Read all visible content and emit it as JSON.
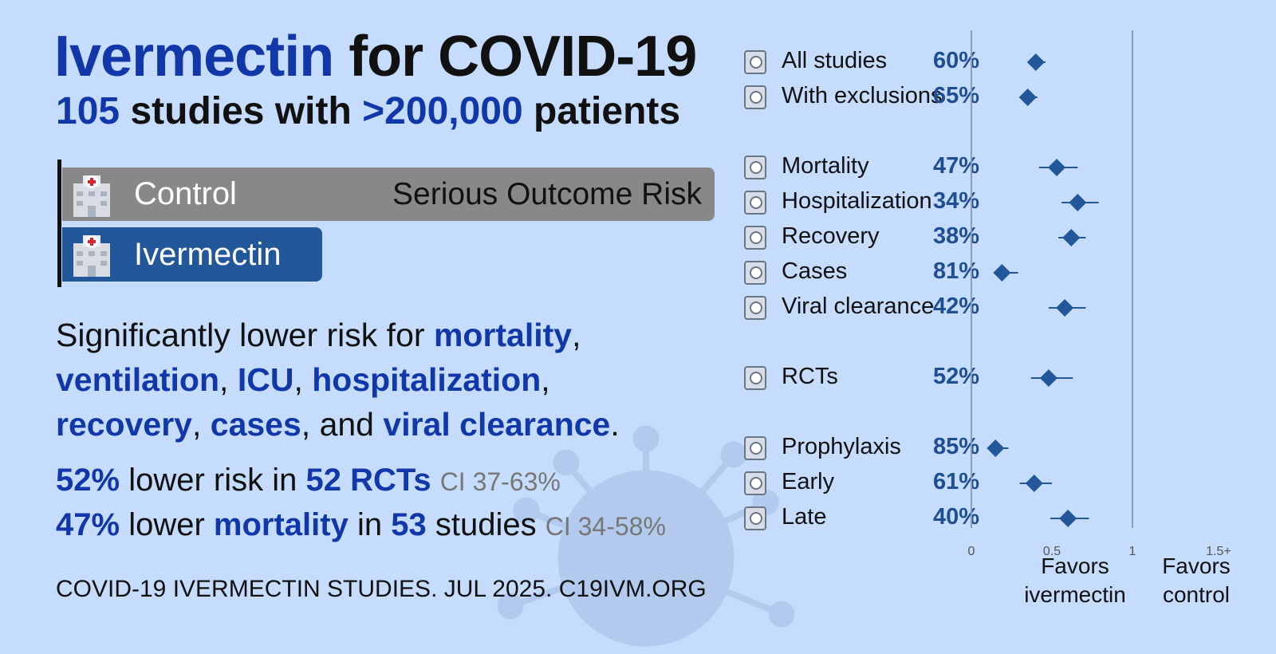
{
  "title": {
    "drug": "Ivermectin",
    "rest": "for COVID-19"
  },
  "subtitle": {
    "study_count": "105",
    "studies_text": "studies with",
    "patient_count": ">200,000",
    "patients_text": "patients"
  },
  "bars": {
    "control_label": "Control",
    "ivermectin_label": "Ivermectin",
    "risk_label": "Serious Outcome Risk",
    "control_risk": 1.0,
    "ivermectin_risk": 0.4
  },
  "summary": {
    "lead": "Significantly lower risk for",
    "terms": [
      "mortality",
      "ventilation",
      "ICU",
      "hospitalization",
      "recovery",
      "cases",
      "viral clearance"
    ],
    "conjunction": "and"
  },
  "stats": [
    {
      "pct": "52%",
      "mid": "lower risk in",
      "count": "52 RCTs",
      "ci": "CI 37-63%"
    },
    {
      "pct": "47%",
      "mid": "lower",
      "keyword": "mortality",
      "in_text": "in",
      "count": "53",
      "tail": "studies",
      "ci": "CI 34-58%"
    }
  ],
  "footer": "COVID-19 IVERMECTIN STUDIES. JUL 2025. C19IVM.ORG",
  "chart_data": {
    "type": "scatter",
    "subtype": "forest-plot",
    "x_axis": {
      "ticks": [
        "0",
        "0.5",
        "1",
        "1.5+"
      ],
      "range": [
        0,
        1.5
      ]
    },
    "reference_line": 1,
    "favors_left": "Favors ivermectin",
    "favors_right": "Favors control",
    "rows": [
      {
        "icon": "document-search-icon",
        "label": "All studies",
        "pct": "60%",
        "rr": 0.4,
        "ci": [
          0.36,
          0.46
        ],
        "slot": 0
      },
      {
        "icon": "document-search-icon",
        "label": "With exclusions",
        "pct": "65%",
        "rr": 0.35,
        "ci": [
          0.32,
          0.41
        ],
        "slot": 1
      },
      {
        "icon": "tombstone-icon",
        "label": "Mortality",
        "pct": "47%",
        "rr": 0.53,
        "ci": [
          0.42,
          0.66
        ],
        "slot": 3
      },
      {
        "icon": "hospital-icon",
        "label": "Hospitalization",
        "pct": "34%",
        "rr": 0.66,
        "ci": [
          0.56,
          0.79
        ],
        "slot": 4
      },
      {
        "icon": "recovery-icon",
        "label": "Recovery",
        "pct": "38%",
        "rr": 0.62,
        "ci": [
          0.54,
          0.71
        ],
        "slot": 5
      },
      {
        "icon": "masked-person-icon",
        "label": "Cases",
        "pct": "81%",
        "rr": 0.19,
        "ci": [
          0.14,
          0.29
        ],
        "slot": 6
      },
      {
        "icon": "virus-icon",
        "label": "Viral clearance",
        "pct": "42%",
        "rr": 0.58,
        "ci": [
          0.48,
          0.71
        ],
        "slot": 7
      },
      {
        "icon": "rct-icon",
        "label": "RCTs",
        "pct": "52%",
        "rr": 0.48,
        "ci": [
          0.37,
          0.63
        ],
        "slot": 9
      },
      {
        "icon": "shield-icon",
        "label": "Prophylaxis",
        "pct": "85%",
        "rr": 0.15,
        "ci": [
          0.1,
          0.23
        ],
        "slot": 11
      },
      {
        "icon": "clock-icon",
        "label": "Early",
        "pct": "61%",
        "rr": 0.39,
        "ci": [
          0.3,
          0.5
        ],
        "slot": 12
      },
      {
        "icon": "hospital-bed-icon",
        "label": "Late",
        "pct": "40%",
        "rr": 0.6,
        "ci": [
          0.49,
          0.73
        ],
        "slot": 13
      }
    ]
  },
  "colors": {
    "background": "#c5dcfd",
    "accent": "#1137a9",
    "marker": "#22579a",
    "control_bar": "#888888"
  }
}
